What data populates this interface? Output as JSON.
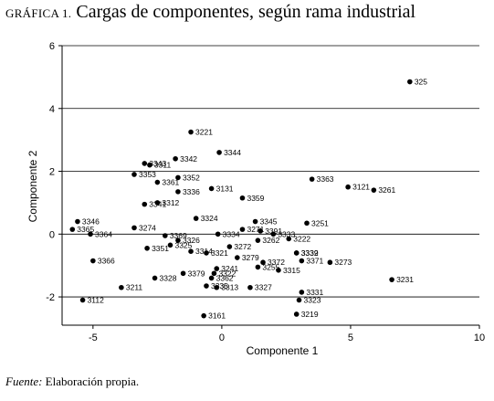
{
  "title": {
    "label": "GRÁFICA 1.",
    "text": "Cargas de componentes, según rama industrial"
  },
  "source": {
    "label": "Fuente:",
    "text": "Elaboración propia."
  },
  "chart_data": {
    "type": "scatter",
    "xlabel": "Componente 1",
    "ylabel": "Componente 2",
    "xlim": [
      -6.2,
      10
    ],
    "ylim": [
      -2.9,
      6
    ],
    "xticks": [
      -5,
      0,
      5,
      10
    ],
    "yticks": [
      -2,
      0,
      2,
      4,
      6
    ],
    "grid": "horizontal",
    "points": [
      {
        "label": "325",
        "x": 7.3,
        "y": 4.85
      },
      {
        "label": "3221",
        "x": -1.2,
        "y": 3.25
      },
      {
        "label": "3344",
        "x": -0.1,
        "y": 2.6
      },
      {
        "label": "3343",
        "x": -3.0,
        "y": 2.25
      },
      {
        "label": "3342",
        "x": -1.8,
        "y": 2.4
      },
      {
        "label": "3311",
        "x": -2.8,
        "y": 2.2
      },
      {
        "label": "3353",
        "x": -3.4,
        "y": 1.9
      },
      {
        "label": "3352",
        "x": -1.7,
        "y": 1.8
      },
      {
        "label": "3361",
        "x": -2.5,
        "y": 1.65
      },
      {
        "label": "3336",
        "x": -1.7,
        "y": 1.35
      },
      {
        "label": "3131",
        "x": -0.4,
        "y": 1.45
      },
      {
        "label": "3363",
        "x": 3.5,
        "y": 1.75
      },
      {
        "label": "3121",
        "x": 4.9,
        "y": 1.5
      },
      {
        "label": "3261",
        "x": 5.9,
        "y": 1.4
      },
      {
        "label": "3359",
        "x": 0.8,
        "y": 1.15
      },
      {
        "label": "3341",
        "x": -3.0,
        "y": 0.95
      },
      {
        "label": "3312",
        "x": -2.5,
        "y": 1.0
      },
      {
        "label": "3324",
        "x": -1.0,
        "y": 0.5
      },
      {
        "label": "3346",
        "x": -5.6,
        "y": 0.4
      },
      {
        "label": "3365",
        "x": -5.8,
        "y": 0.15
      },
      {
        "label": "3364",
        "x": -5.1,
        "y": 0.0
      },
      {
        "label": "3274",
        "x": -3.4,
        "y": 0.2
      },
      {
        "label": "3369",
        "x": -2.2,
        "y": -0.05
      },
      {
        "label": "3334",
        "x": -0.15,
        "y": 0.0
      },
      {
        "label": "3271",
        "x": 0.8,
        "y": 0.15
      },
      {
        "label": "3345",
        "x": 1.3,
        "y": 0.4
      },
      {
        "label": "3391",
        "x": 1.5,
        "y": 0.1
      },
      {
        "label": "3333",
        "x": 2.0,
        "y": 0.0
      },
      {
        "label": "3251",
        "x": 3.3,
        "y": 0.35
      },
      {
        "label": "3222",
        "x": 2.6,
        "y": -0.15
      },
      {
        "label": "3326",
        "x": -1.7,
        "y": -0.2
      },
      {
        "label": "3262",
        "x": 1.4,
        "y": -0.2
      },
      {
        "label": "3272",
        "x": 0.3,
        "y": -0.4
      },
      {
        "label": "3351",
        "x": -2.9,
        "y": -0.45
      },
      {
        "label": "3325",
        "x": -2.0,
        "y": -0.35
      },
      {
        "label": "3314",
        "x": -1.2,
        "y": -0.55
      },
      {
        "label": "3321",
        "x": -0.6,
        "y": -0.6
      },
      {
        "label": "3332",
        "x": 2.9,
        "y": -0.6
      },
      {
        "label": "3339",
        "x": 2.9,
        "y": -0.6
      },
      {
        "label": "3366",
        "x": -5.0,
        "y": -0.85
      },
      {
        "label": "3279",
        "x": 0.6,
        "y": -0.75
      },
      {
        "label": "3372",
        "x": 1.6,
        "y": -0.9
      },
      {
        "label": "3371",
        "x": 3.1,
        "y": -0.85
      },
      {
        "label": "3273",
        "x": 4.2,
        "y": -0.9
      },
      {
        "label": "3241",
        "x": -0.2,
        "y": -1.1
      },
      {
        "label": "3255",
        "x": 1.4,
        "y": -1.05
      },
      {
        "label": "3379",
        "x": -1.5,
        "y": -1.25
      },
      {
        "label": "3322",
        "x": -0.3,
        "y": -1.25
      },
      {
        "label": "3315",
        "x": 2.2,
        "y": -1.15
      },
      {
        "label": "3211",
        "x": -3.9,
        "y": -1.7
      },
      {
        "label": "3328",
        "x": -2.6,
        "y": -1.4
      },
      {
        "label": "3362",
        "x": -0.4,
        "y": -1.4
      },
      {
        "label": "3335",
        "x": -0.6,
        "y": -1.65
      },
      {
        "label": "3313",
        "x": -0.2,
        "y": -1.7
      },
      {
        "label": "3327",
        "x": 1.1,
        "y": -1.7
      },
      {
        "label": "3231",
        "x": 6.6,
        "y": -1.45
      },
      {
        "label": "3331",
        "x": 3.1,
        "y": -1.85
      },
      {
        "label": "3323",
        "x": 3.0,
        "y": -2.1
      },
      {
        "label": "3112",
        "x": -5.4,
        "y": -2.1
      },
      {
        "label": "3161",
        "x": -0.7,
        "y": -2.6
      },
      {
        "label": "3219",
        "x": 2.9,
        "y": -2.55
      }
    ]
  }
}
